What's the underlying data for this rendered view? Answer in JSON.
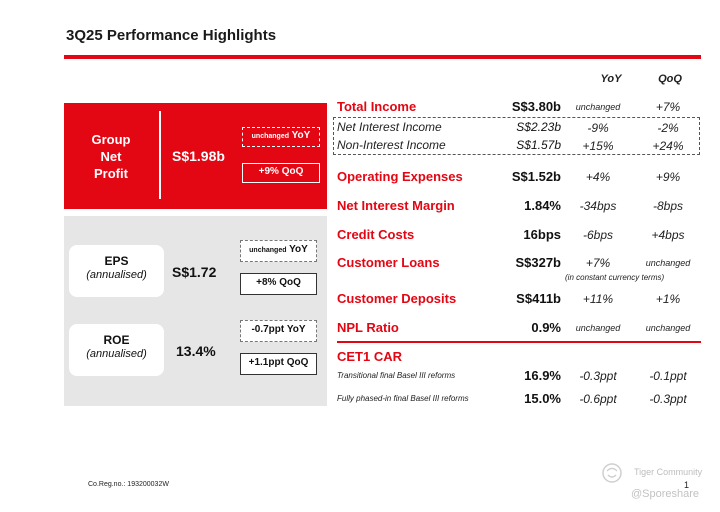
{
  "title": "3Q25 Performance Highlights",
  "headers": {
    "yoy": "YoY",
    "qoq": "QoQ"
  },
  "group_net_profit": {
    "label_lines": [
      "Group",
      "Net",
      "Profit"
    ],
    "value": "S$1.98b",
    "yoy_word": "unchanged",
    "yoy_suffix": "YoY",
    "qoq_badge": "+9% QoQ"
  },
  "eps": {
    "title": "EPS",
    "subtitle": "(annualised)",
    "value": "S$1.72",
    "yoy_word": "unchanged",
    "yoy_suffix": "YoY",
    "qoq_badge": "+8% QoQ"
  },
  "roe": {
    "title": "ROE",
    "subtitle": "(annualised)",
    "value": "13.4%",
    "yoy_badge": "-0.7ppt YoY",
    "qoq_badge": "+1.1ppt QoQ"
  },
  "metrics": {
    "total_income": {
      "label": "Total Income",
      "value": "S$3.80b",
      "yoy": "unchanged",
      "qoq": "+7%"
    },
    "nii": {
      "label": "Net Interest Income",
      "value": "S$2.23b",
      "yoy": "-9%",
      "qoq": "-2%"
    },
    "non_ii": {
      "label": "Non-Interest Income",
      "value": "S$1.57b",
      "yoy": "+15%",
      "qoq": "+24%"
    },
    "opex": {
      "label": "Operating Expenses",
      "value": "S$1.52b",
      "yoy": "+4%",
      "qoq": "+9%"
    },
    "nim": {
      "label": "Net Interest Margin",
      "value": "1.84%",
      "yoy": "-34bps",
      "qoq": "-8bps"
    },
    "credit_costs": {
      "label": "Credit Costs",
      "value": "16bps",
      "yoy": "-6bps",
      "qoq": "+4bps"
    },
    "customer_loans": {
      "label": "Customer Loans",
      "value": "S$327b",
      "yoy": "+7%",
      "qoq": "unchanged",
      "note": "(in constant currency terms)"
    },
    "customer_deposits": {
      "label": "Customer Deposits",
      "value": "S$411b",
      "yoy": "+11%",
      "qoq": "+1%"
    },
    "npl": {
      "label": "NPL Ratio",
      "value": "0.9%",
      "yoy": "unchanged",
      "qoq": "unchanged"
    },
    "cet1": {
      "label": "CET1 CAR",
      "transitional": {
        "label": "Transitional final Basel III reforms",
        "value": "16.9%",
        "yoy": "-0.3ppt",
        "qoq": "-0.1ppt"
      },
      "fully_phased": {
        "label": "Fully phased-in final Basel III reforms",
        "value": "15.0%",
        "yoy": "-0.6ppt",
        "qoq": "-0.3ppt"
      }
    }
  },
  "footer": {
    "reg_no": "Co.Reg.no.: 193200032W",
    "page": "1"
  },
  "watermark": {
    "line1": "Tiger Community",
    "line2": "@Sporeshare"
  },
  "colors": {
    "accent_red": "#e30613",
    "panel_grey": "#e6e6e6"
  }
}
